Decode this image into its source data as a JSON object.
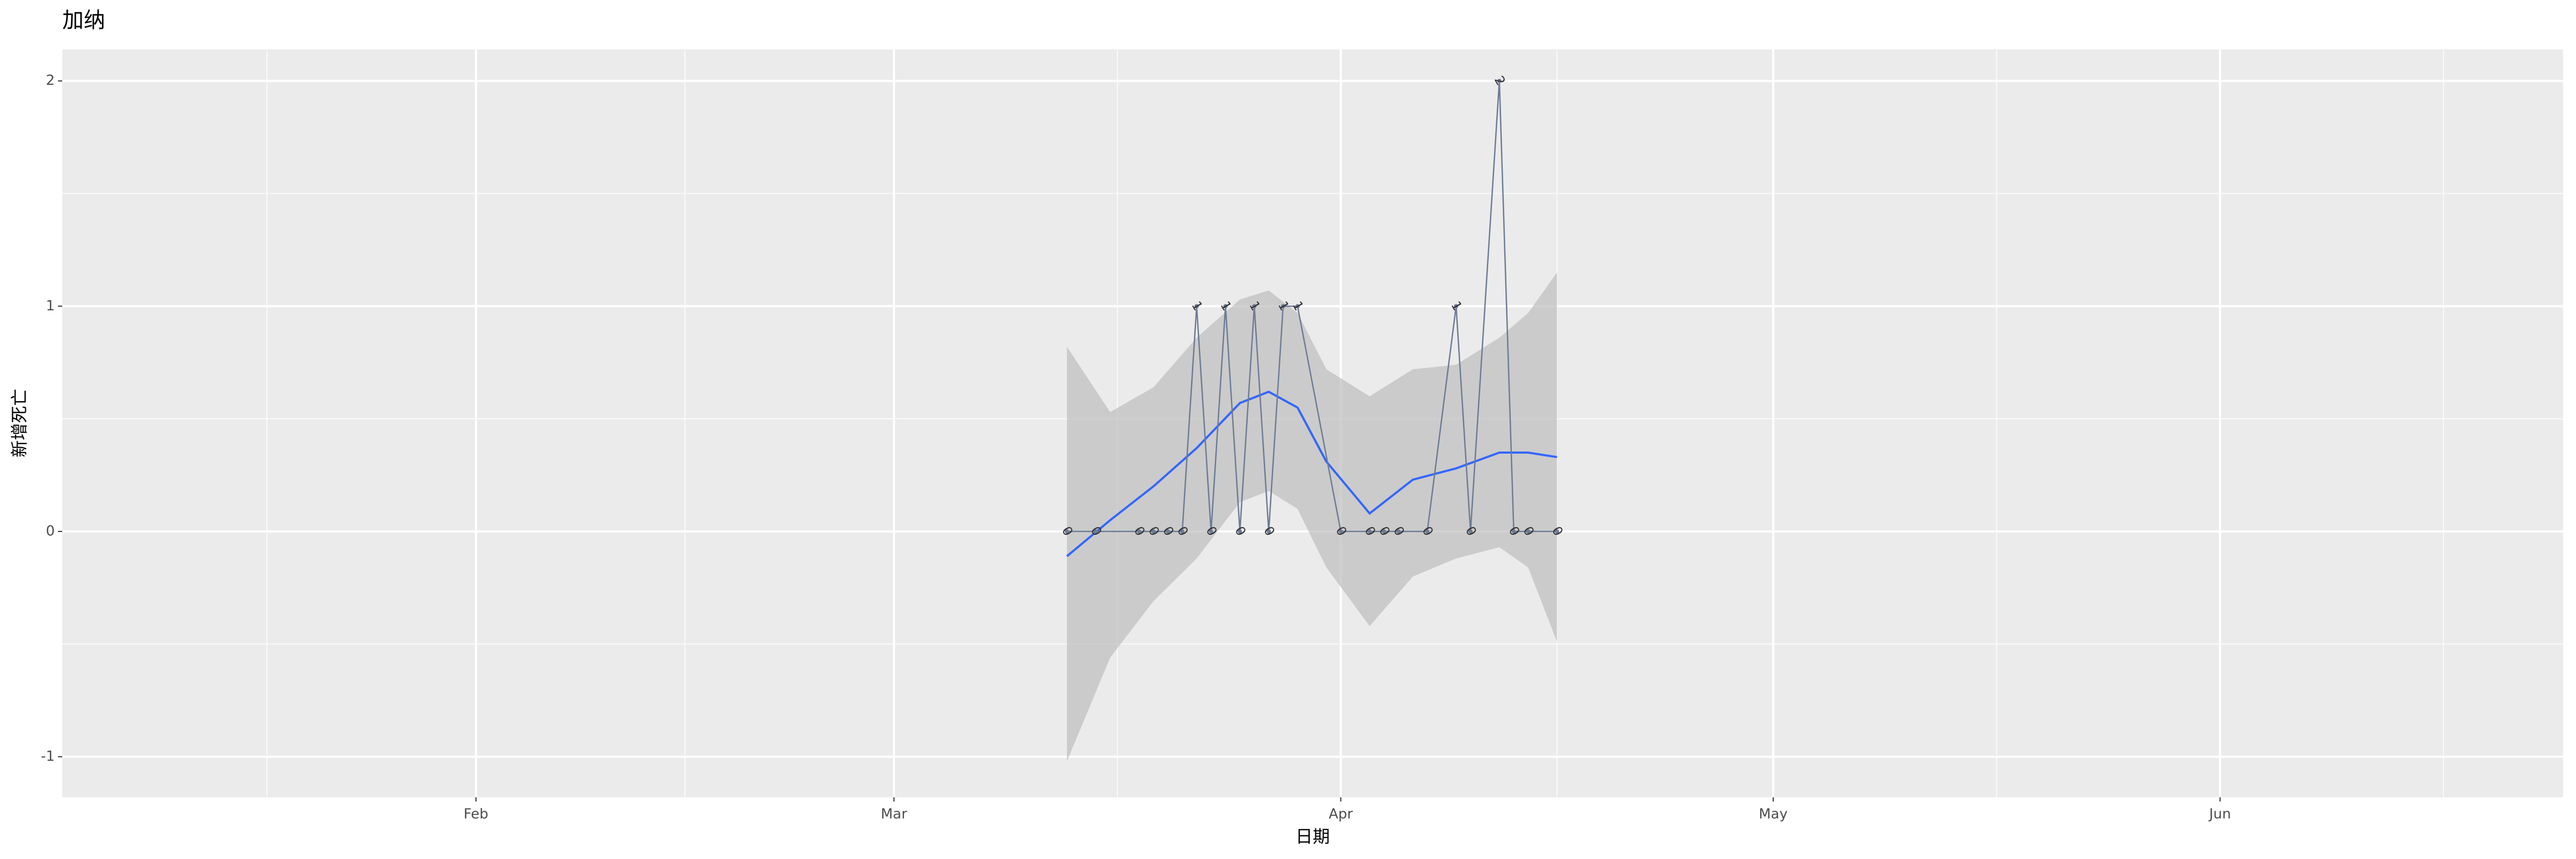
{
  "chart_data": {
    "type": "line",
    "title": "加纳",
    "x_label": "日期",
    "y_label": "新增死亡",
    "x": [
      73,
      75,
      78,
      79,
      80,
      81,
      82,
      83,
      84,
      85,
      86,
      87,
      88,
      89,
      92,
      94,
      95,
      96,
      98,
      100,
      101,
      103,
      104,
      105,
      107
    ],
    "series": [
      {
        "color": "#6c7b95",
        "values": [
          0,
          0,
          0,
          0,
          0,
          0,
          1,
          0,
          1,
          0,
          1,
          0,
          1,
          1,
          0,
          0,
          0,
          0,
          0,
          1,
          0,
          2,
          0,
          0,
          0
        ]
      }
    ],
    "smooth": {
      "color": "#3366ff",
      "band_color": "#bdbdbd",
      "x": [
        73,
        76,
        79,
        82,
        85,
        87,
        89,
        91,
        94,
        97,
        100,
        103,
        105,
        107
      ],
      "values": [
        -0.11,
        0.05,
        0.2,
        0.37,
        0.57,
        0.62,
        0.55,
        0.31,
        0.08,
        0.23,
        0.28,
        0.35,
        0.35,
        0.33
      ],
      "lower": [
        -1.02,
        -0.56,
        -0.31,
        -0.12,
        0.13,
        0.18,
        0.1,
        -0.16,
        -0.42,
        -0.2,
        -0.12,
        -0.07,
        -0.16,
        -0.49
      ],
      "upper": [
        0.82,
        0.53,
        0.64,
        0.86,
        1.03,
        1.07,
        0.97,
        0.72,
        0.6,
        0.72,
        0.74,
        0.86,
        0.97,
        1.15
      ]
    },
    "xlim": [
      3.3,
      176.8
    ],
    "xticks": [
      {
        "value": 32,
        "label": "Feb"
      },
      {
        "value": 61,
        "label": "Mar"
      },
      {
        "value": 92,
        "label": "Apr"
      },
      {
        "value": 122,
        "label": "May"
      },
      {
        "value": 153,
        "label": "Jun"
      }
    ],
    "ylim": [
      -1.18,
      2.14
    ],
    "yticks": [
      -1,
      0,
      1,
      2
    ],
    "grid": true
  }
}
